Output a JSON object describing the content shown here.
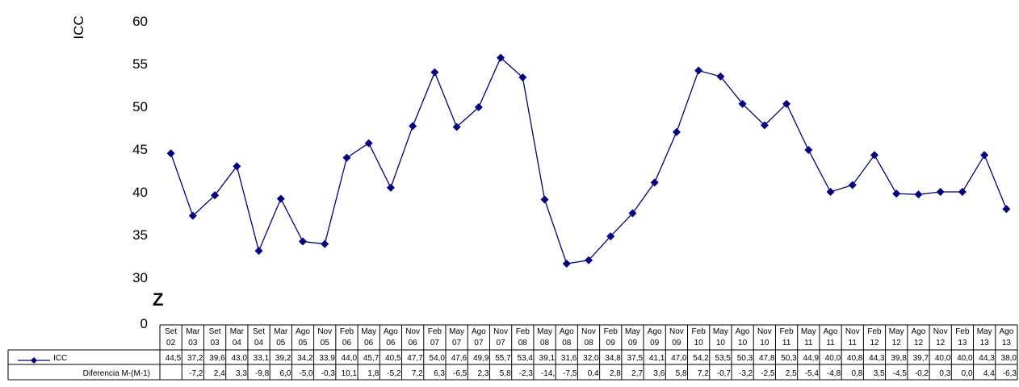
{
  "chart_data": {
    "type": "line",
    "ylabel": "ICC",
    "ylim": [
      30,
      60
    ],
    "y_ticks": [
      "30",
      "35",
      "40",
      "45",
      "50",
      "55",
      "60"
    ],
    "y_zero_label": "0",
    "axis_break_glyph": "Z",
    "grid": false,
    "legend": "table-left",
    "color": "#000080",
    "categories": [
      [
        "Set",
        "02"
      ],
      [
        "Mar",
        "03"
      ],
      [
        "Set",
        "03"
      ],
      [
        "Mar",
        "04"
      ],
      [
        "Set",
        "04"
      ],
      [
        "Mar",
        "05"
      ],
      [
        "Ago",
        "05"
      ],
      [
        "Nov",
        "05"
      ],
      [
        "Feb",
        "06"
      ],
      [
        "May",
        "06"
      ],
      [
        "Ago",
        "06"
      ],
      [
        "Nov",
        "06"
      ],
      [
        "Feb",
        "07"
      ],
      [
        "May",
        "07"
      ],
      [
        "Ago",
        "07"
      ],
      [
        "Nov",
        "07"
      ],
      [
        "Feb",
        "08"
      ],
      [
        "May",
        "08"
      ],
      [
        "Ago",
        "08"
      ],
      [
        "Nov",
        "08"
      ],
      [
        "Feb",
        "09"
      ],
      [
        "May",
        "09"
      ],
      [
        "Ago",
        "09"
      ],
      [
        "Nov",
        "09"
      ],
      [
        "Feb",
        "10"
      ],
      [
        "May",
        "10"
      ],
      [
        "Ago",
        "10"
      ],
      [
        "Nov",
        "10"
      ],
      [
        "Feb",
        "11"
      ],
      [
        "May",
        "11"
      ],
      [
        "Ago",
        "11"
      ],
      [
        "Nov",
        "11"
      ],
      [
        "Feb",
        "12"
      ],
      [
        "May",
        "12"
      ],
      [
        "Ago",
        "12"
      ],
      [
        "Nov",
        "12"
      ],
      [
        "Feb",
        "13"
      ],
      [
        "May",
        "13"
      ],
      [
        "Ago",
        "13"
      ]
    ],
    "series": [
      {
        "name": "ICC",
        "values": [
          44.5,
          37.2,
          39.6,
          43.0,
          33.1,
          39.2,
          34.2,
          33.9,
          44.0,
          45.7,
          40.5,
          47.7,
          54.0,
          47.6,
          49.9,
          55.7,
          53.4,
          39.1,
          31.6,
          32.0,
          34.8,
          37.5,
          41.1,
          47.0,
          54.2,
          53.5,
          50.3,
          47.8,
          50.3,
          44.9,
          40.0,
          40.8,
          44.3,
          39.8,
          39.7,
          40.0,
          40.0,
          44.3,
          38.0
        ],
        "labels": [
          "44,5",
          "37,2",
          "39,6",
          "43,0",
          "33,1",
          "39,2",
          "34,2",
          "33,9",
          "44,0",
          "45,7",
          "40,5",
          "47,7",
          "54,0",
          "47,6",
          "49,9",
          "55,7",
          "53,4",
          "39,1",
          "31,6",
          "32,0",
          "34,8",
          "37,5",
          "41,1",
          "47,0",
          "54,2",
          "53,5",
          "50,3",
          "47,8",
          "50,3",
          "44,9",
          "40,0",
          "40,8",
          "44,3",
          "39,8",
          "39,7",
          "40,0",
          "40,0",
          "44,3",
          "38,0"
        ]
      },
      {
        "name": "Diferencia M-(M-1)",
        "labels": [
          "",
          "-7,2",
          "2,4",
          "3,3",
          "-9,8",
          "6,0",
          "-5,0",
          "-0,3",
          "10,1",
          "1,8",
          "-5,2",
          "7,2",
          "6,3",
          "-6,5",
          "2,3",
          "5,8",
          "-2,3",
          "-14,",
          "-7,5",
          "0,4",
          "2,8",
          "2,7",
          "3,6",
          "5,8",
          "7,2",
          "-0,7",
          "-3,2",
          "-2,5",
          "2,5",
          "-5,4",
          "-4,8",
          "0,8",
          "3,5",
          "-4,5",
          "-0,2",
          "0,3",
          "0,0",
          "4,4",
          "-6,3"
        ]
      }
    ]
  }
}
